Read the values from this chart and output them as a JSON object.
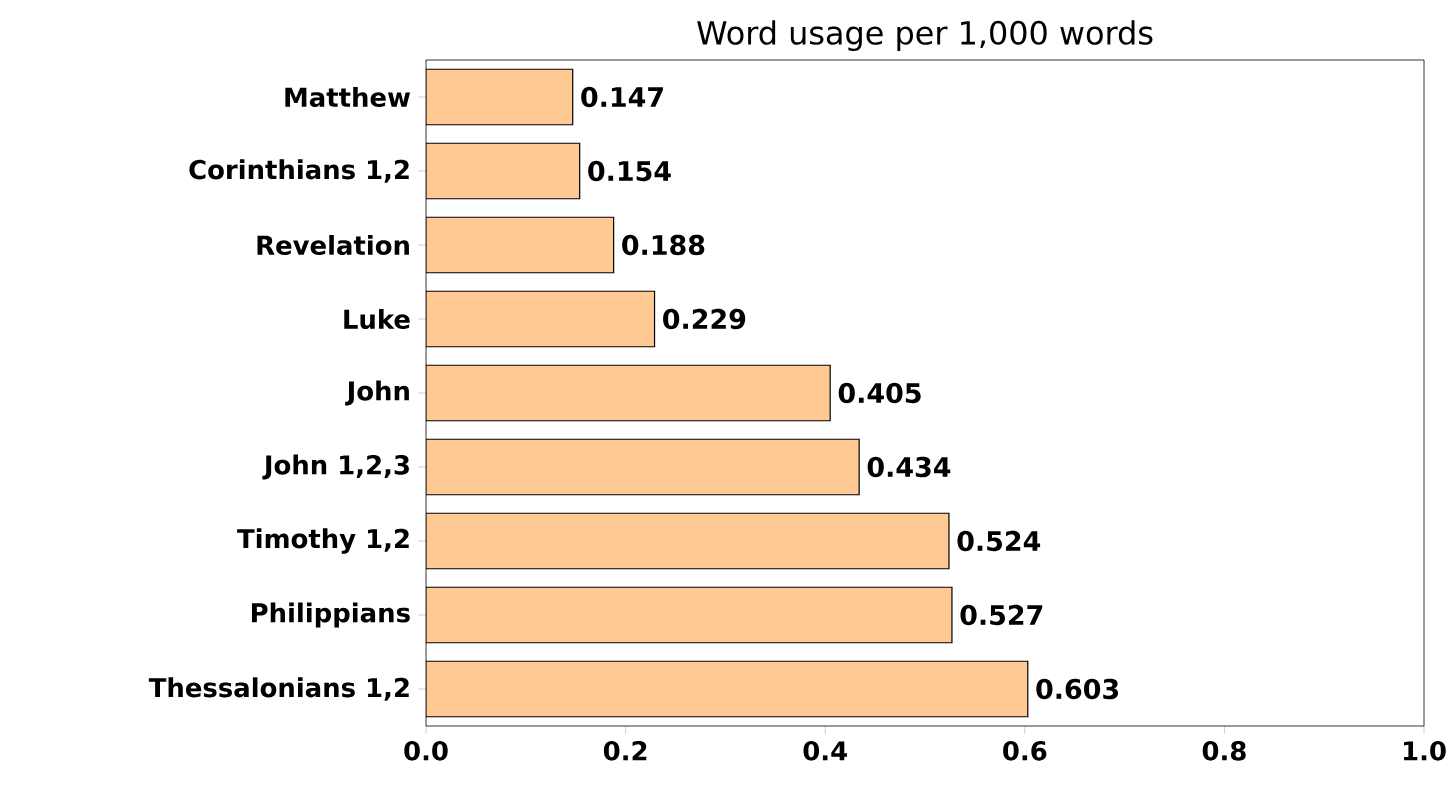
{
  "chart_data": {
    "type": "bar",
    "orientation": "horizontal",
    "title": "Word usage per 1,000 words",
    "categories": [
      "Matthew",
      "Corinthians 1,2",
      "Revelation",
      "Luke",
      "John",
      "John 1,2,3",
      "Timothy 1,2",
      "Philippians",
      "Thessalonians 1,2"
    ],
    "values": [
      0.147,
      0.154,
      0.188,
      0.229,
      0.405,
      0.434,
      0.524,
      0.527,
      0.603
    ],
    "color": "#ffc994",
    "xlim": [
      0,
      1
    ],
    "xticks": [
      {
        "value": 0,
        "label": "0.0"
      },
      0.2,
      0.4,
      0.6,
      0.8,
      {
        "value": 1,
        "label": "1.0"
      }
    ],
    "data_labels": true,
    "grid": false
  }
}
